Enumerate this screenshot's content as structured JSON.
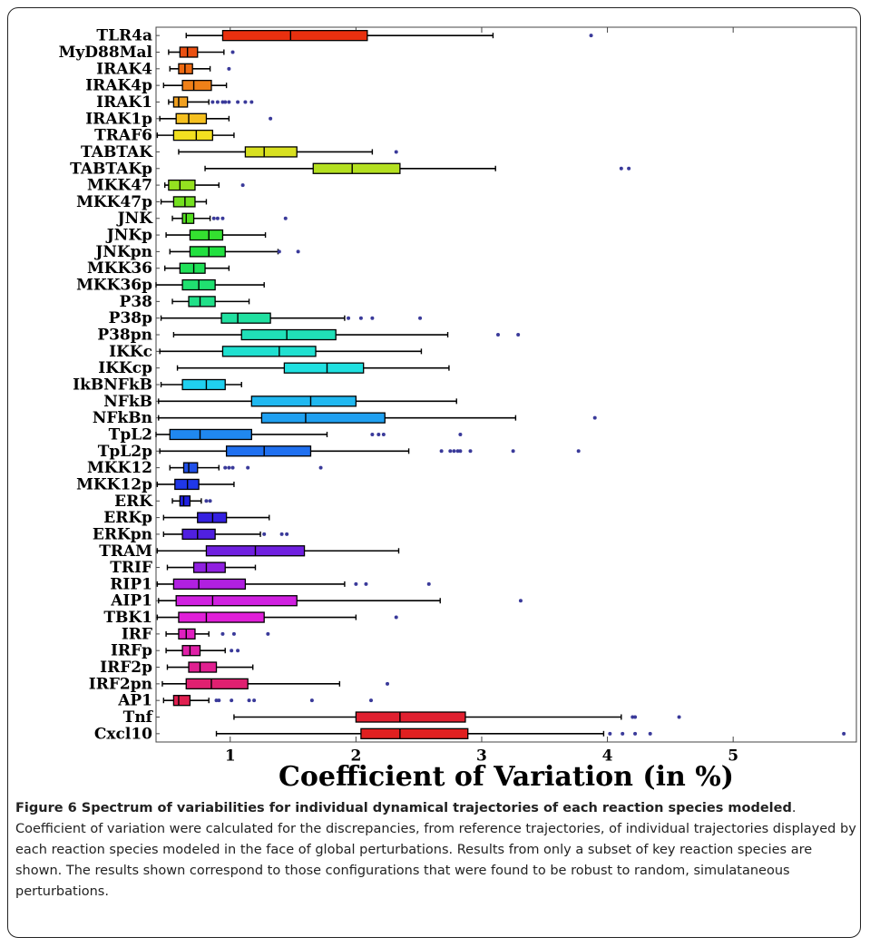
{
  "chart_data": {
    "type": "boxplot",
    "xlabel": "Coefficient of Variation (in %)",
    "xlim": [
      0.41,
      5.98
    ],
    "xticks": [
      1,
      2,
      3,
      4,
      5
    ],
    "flier_color": "#3a3a9a",
    "categories": [
      "TLR4a",
      "MyD88Mal",
      "IRAK4",
      "IRAK4p",
      "IRAK1",
      "IRAK1p",
      "TRAF6",
      "TABTAK",
      "TABTAKp",
      "MKK47",
      "MKK47p",
      "JNK",
      "JNKp",
      "JNKpn",
      "MKK36",
      "MKK36p",
      "P38",
      "P38p",
      "P38pn",
      "IKKc",
      "IKKcp",
      "IkBNFkB",
      "NFkB",
      "NFkBn",
      "TpL2",
      "TpL2p",
      "MKK12",
      "MKK12p",
      "ERK",
      "ERKp",
      "ERKpn",
      "TRAM",
      "TRIF",
      "RIP1",
      "AIP1",
      "TBK1",
      "IRF",
      "IRFp",
      "IRF2p",
      "IRF2pn",
      "AP1",
      "Tnf",
      "Cxcl10"
    ],
    "boxes": [
      {
        "whislo": 0.65,
        "q1": 0.94,
        "med": 1.48,
        "q3": 2.09,
        "whishi": 3.09,
        "fliers": [
          3.87
        ],
        "color": "#e8300f"
      },
      {
        "whislo": 0.51,
        "q1": 0.6,
        "med": 0.66,
        "q3": 0.74,
        "whishi": 0.95,
        "fliers": [
          1.02
        ],
        "color": "#ea5012"
      },
      {
        "whislo": 0.52,
        "q1": 0.59,
        "med": 0.64,
        "q3": 0.7,
        "whishi": 0.84,
        "fliers": [
          0.99
        ],
        "color": "#ee6a12"
      },
      {
        "whislo": 0.47,
        "q1": 0.62,
        "med": 0.71,
        "q3": 0.85,
        "whishi": 0.97,
        "fliers": [],
        "color": "#f08018"
      },
      {
        "whislo": 0.51,
        "q1": 0.55,
        "med": 0.59,
        "q3": 0.66,
        "whishi": 0.83,
        "fliers": [
          0.86,
          0.9,
          0.94,
          0.96,
          0.99,
          1.06,
          1.12,
          1.17
        ],
        "color": "#f0a020"
      },
      {
        "whislo": 0.44,
        "q1": 0.57,
        "med": 0.67,
        "q3": 0.81,
        "whishi": 0.99,
        "fliers": [
          1.32
        ],
        "color": "#f5c020"
      },
      {
        "whislo": 0.42,
        "q1": 0.55,
        "med": 0.73,
        "q3": 0.86,
        "whishi": 1.03,
        "fliers": [],
        "color": "#f2e020"
      },
      {
        "whislo": 0.59,
        "q1": 1.12,
        "med": 1.27,
        "q3": 1.53,
        "whishi": 2.13,
        "fliers": [
          2.32
        ],
        "color": "#d8e020"
      },
      {
        "whislo": 0.8,
        "q1": 1.66,
        "med": 1.97,
        "q3": 2.35,
        "whishi": 3.11,
        "fliers": [
          4.11,
          4.17
        ],
        "color": "#b4e020"
      },
      {
        "whislo": 0.48,
        "q1": 0.51,
        "med": 0.6,
        "q3": 0.72,
        "whishi": 0.91,
        "fliers": [
          1.1
        ],
        "color": "#94e020"
      },
      {
        "whislo": 0.45,
        "q1": 0.55,
        "med": 0.64,
        "q3": 0.72,
        "whishi": 0.81,
        "fliers": [],
        "color": "#74e020"
      },
      {
        "whislo": 0.54,
        "q1": 0.62,
        "med": 0.65,
        "q3": 0.71,
        "whishi": 0.84,
        "fliers": [
          0.87,
          0.9,
          0.94,
          1.44
        ],
        "color": "#54e020"
      },
      {
        "whislo": 0.49,
        "q1": 0.68,
        "med": 0.83,
        "q3": 0.94,
        "whishi": 1.28,
        "fliers": [],
        "color": "#34e030"
      },
      {
        "whislo": 0.52,
        "q1": 0.68,
        "med": 0.83,
        "q3": 0.96,
        "whishi": 1.38,
        "fliers": [
          1.39,
          1.54
        ],
        "color": "#22e040"
      },
      {
        "whislo": 0.48,
        "q1": 0.6,
        "med": 0.71,
        "q3": 0.8,
        "whishi": 0.99,
        "fliers": [],
        "color": "#20e058"
      },
      {
        "whislo": 0.41,
        "q1": 0.62,
        "med": 0.75,
        "q3": 0.88,
        "whishi": 1.27,
        "fliers": [],
        "color": "#20e070"
      },
      {
        "whislo": 0.54,
        "q1": 0.67,
        "med": 0.76,
        "q3": 0.88,
        "whishi": 1.15,
        "fliers": [],
        "color": "#20e088"
      },
      {
        "whislo": 0.45,
        "q1": 0.93,
        "med": 1.06,
        "q3": 1.32,
        "whishi": 1.91,
        "fliers": [
          1.94,
          2.04,
          2.13,
          2.51
        ],
        "color": "#20e0a0"
      },
      {
        "whislo": 0.55,
        "q1": 1.09,
        "med": 1.45,
        "q3": 1.84,
        "whishi": 2.73,
        "fliers": [
          3.13,
          3.29
        ],
        "color": "#20e0b8"
      },
      {
        "whislo": 0.44,
        "q1": 0.94,
        "med": 1.39,
        "q3": 1.68,
        "whishi": 2.52,
        "fliers": [],
        "color": "#20e0d0"
      },
      {
        "whislo": 0.58,
        "q1": 1.43,
        "med": 1.77,
        "q3": 2.06,
        "whishi": 2.74,
        "fliers": [],
        "color": "#20e0e0"
      },
      {
        "whislo": 0.45,
        "q1": 0.62,
        "med": 0.81,
        "q3": 0.96,
        "whishi": 1.09,
        "fliers": [],
        "color": "#20d0f0"
      },
      {
        "whislo": 0.43,
        "q1": 1.17,
        "med": 1.64,
        "q3": 2.0,
        "whishi": 2.8,
        "fliers": [],
        "color": "#20b8f0"
      },
      {
        "whislo": 0.43,
        "q1": 1.25,
        "med": 1.6,
        "q3": 2.23,
        "whishi": 3.27,
        "fliers": [
          3.9
        ],
        "color": "#20a0f0"
      },
      {
        "whislo": 0.41,
        "q1": 0.52,
        "med": 0.76,
        "q3": 1.17,
        "whishi": 1.77,
        "fliers": [
          2.13,
          2.18,
          2.22,
          2.83
        ],
        "color": "#2088f0"
      },
      {
        "whislo": 0.44,
        "q1": 0.97,
        "med": 1.27,
        "q3": 1.64,
        "whishi": 2.42,
        "fliers": [
          2.68,
          2.75,
          2.78,
          2.81,
          2.83,
          2.91,
          3.25,
          3.77
        ],
        "color": "#2070f0"
      },
      {
        "whislo": 0.52,
        "q1": 0.63,
        "med": 0.67,
        "q3": 0.74,
        "whishi": 0.91,
        "fliers": [
          0.96,
          0.99,
          1.02,
          1.14,
          1.72
        ],
        "color": "#2050e8"
      },
      {
        "whislo": 0.42,
        "q1": 0.56,
        "med": 0.66,
        "q3": 0.75,
        "whishi": 1.03,
        "fliers": [],
        "color": "#2038e8"
      },
      {
        "whislo": 0.54,
        "q1": 0.6,
        "med": 0.63,
        "q3": 0.68,
        "whishi": 0.77,
        "fliers": [
          0.81,
          0.84
        ],
        "color": "#2020e0"
      },
      {
        "whislo": 0.47,
        "q1": 0.74,
        "med": 0.86,
        "q3": 0.97,
        "whishi": 1.31,
        "fliers": [],
        "color": "#3420e0"
      },
      {
        "whislo": 0.47,
        "q1": 0.62,
        "med": 0.74,
        "q3": 0.88,
        "whishi": 1.24,
        "fliers": [
          1.27,
          1.41,
          1.45
        ],
        "color": "#5020e0"
      },
      {
        "whislo": 0.42,
        "q1": 0.81,
        "med": 1.2,
        "q3": 1.59,
        "whishi": 2.34,
        "fliers": [],
        "color": "#7020e0"
      },
      {
        "whislo": 0.5,
        "q1": 0.71,
        "med": 0.81,
        "q3": 0.96,
        "whishi": 1.2,
        "fliers": [],
        "color": "#9020e0"
      },
      {
        "whislo": 0.42,
        "q1": 0.55,
        "med": 0.75,
        "q3": 1.12,
        "whishi": 1.91,
        "fliers": [
          2.0,
          2.08,
          2.58
        ],
        "color": "#b020e0"
      },
      {
        "whislo": 0.43,
        "q1": 0.57,
        "med": 0.86,
        "q3": 1.53,
        "whishi": 2.67,
        "fliers": [
          3.31
        ],
        "color": "#d020e0"
      },
      {
        "whislo": 0.42,
        "q1": 0.59,
        "med": 0.81,
        "q3": 1.27,
        "whishi": 2.0,
        "fliers": [
          2.32
        ],
        "color": "#e020d8"
      },
      {
        "whislo": 0.49,
        "q1": 0.59,
        "med": 0.65,
        "q3": 0.72,
        "whishi": 0.83,
        "fliers": [
          0.94,
          1.03,
          1.3
        ],
        "color": "#e020c0"
      },
      {
        "whislo": 0.49,
        "q1": 0.62,
        "med": 0.68,
        "q3": 0.76,
        "whishi": 0.96,
        "fliers": [
          1.01,
          1.06
        ],
        "color": "#e020a8"
      },
      {
        "whislo": 0.5,
        "q1": 0.67,
        "med": 0.76,
        "q3": 0.89,
        "whishi": 1.18,
        "fliers": [],
        "color": "#e02090"
      },
      {
        "whislo": 0.46,
        "q1": 0.65,
        "med": 0.85,
        "q3": 1.14,
        "whishi": 1.87,
        "fliers": [
          2.25
        ],
        "color": "#e02070"
      },
      {
        "whislo": 0.47,
        "q1": 0.55,
        "med": 0.59,
        "q3": 0.68,
        "whishi": 0.83,
        "fliers": [
          0.89,
          0.91,
          1.01,
          1.15,
          1.19,
          1.65,
          2.12
        ],
        "color": "#e02050"
      },
      {
        "whislo": 1.03,
        "q1": 2.0,
        "med": 2.35,
        "q3": 2.87,
        "whishi": 4.11,
        "fliers": [
          4.2,
          4.22,
          4.57
        ],
        "color": "#e02030"
      },
      {
        "whislo": 0.89,
        "q1": 2.04,
        "med": 2.35,
        "q3": 2.89,
        "whishi": 3.97,
        "fliers": [
          4.02,
          4.12,
          4.22,
          4.34,
          5.88
        ],
        "color": "#e02020"
      }
    ]
  },
  "caption": {
    "title": "Figure 6 Spectrum of variabilities for individual dynamical trajectories of each reaction species modeled",
    "text": ". Coefficient of variation were calculated for the discrepancies, from reference trajectories, of individual trajectories displayed by each reaction species modeled in the face of global perturbations. Results from only a subset of key reaction species are shown. The results shown correspond to those configurations that were found to be robust to random, simulataneous perturbations."
  }
}
